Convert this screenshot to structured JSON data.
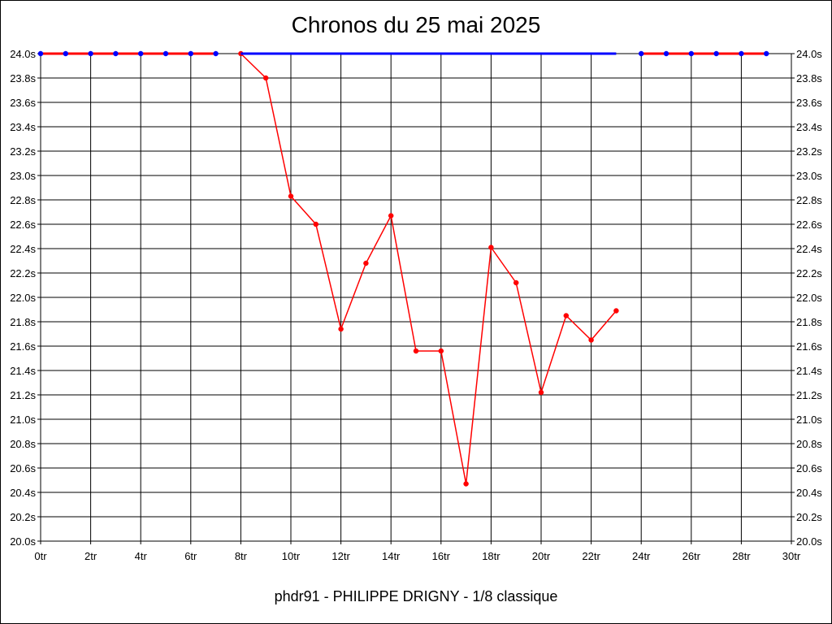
{
  "chart_data": {
    "type": "line",
    "title": "Chronos du 25 mai 2025",
    "subtitle": "phdr91 - PHILIPPE DRIGNY - 1/8 classique",
    "xlabel": "",
    "ylabel": "",
    "xlim": [
      0,
      30
    ],
    "ylim": [
      20.0,
      24.0
    ],
    "x_ticks": [
      "0tr",
      "2tr",
      "4tr",
      "6tr",
      "8tr",
      "10tr",
      "12tr",
      "14tr",
      "16tr",
      "18tr",
      "20tr",
      "22tr",
      "24tr",
      "26tr",
      "28tr",
      "30tr"
    ],
    "y_ticks": [
      "20.0s",
      "20.2s",
      "20.4s",
      "20.6s",
      "20.8s",
      "21.0s",
      "21.2s",
      "21.4s",
      "21.6s",
      "21.8s",
      "22.0s",
      "22.2s",
      "22.4s",
      "22.6s",
      "22.8s",
      "23.0s",
      "23.2s",
      "23.4s",
      "23.6s",
      "23.8s",
      "24.0s"
    ],
    "grid": true,
    "series": [
      {
        "color": "#ff0000",
        "points": [
          [
            8,
            24.0
          ],
          [
            9,
            23.8
          ],
          [
            10,
            22.83
          ],
          [
            11,
            22.6
          ],
          [
            12,
            21.74
          ],
          [
            13,
            22.28
          ],
          [
            14,
            22.67
          ],
          [
            15,
            21.56
          ],
          [
            16,
            21.56
          ],
          [
            17,
            20.47
          ],
          [
            18,
            22.41
          ],
          [
            19,
            22.12
          ],
          [
            20,
            21.22
          ],
          [
            21,
            21.85
          ],
          [
            22,
            21.65
          ],
          [
            23,
            21.89
          ]
        ]
      },
      {
        "color": "#0000ff",
        "points": [
          [
            8,
            24.0
          ],
          [
            23,
            24.0
          ]
        ]
      },
      {
        "color": "#ff0000",
        "marker_color": "#0000ff",
        "points": [
          [
            0,
            24.0
          ],
          [
            1,
            24.0
          ],
          [
            2,
            24.0
          ],
          [
            3,
            24.0
          ],
          [
            4,
            24.0
          ],
          [
            5,
            24.0
          ],
          [
            6,
            24.0
          ],
          [
            7,
            24.0
          ]
        ]
      },
      {
        "color": "#ff0000",
        "marker_color": "#0000ff",
        "points": [
          [
            24,
            24.0
          ],
          [
            25,
            24.0
          ],
          [
            26,
            24.0
          ],
          [
            27,
            24.0
          ],
          [
            28,
            24.0
          ],
          [
            29,
            24.0
          ]
        ]
      }
    ]
  }
}
